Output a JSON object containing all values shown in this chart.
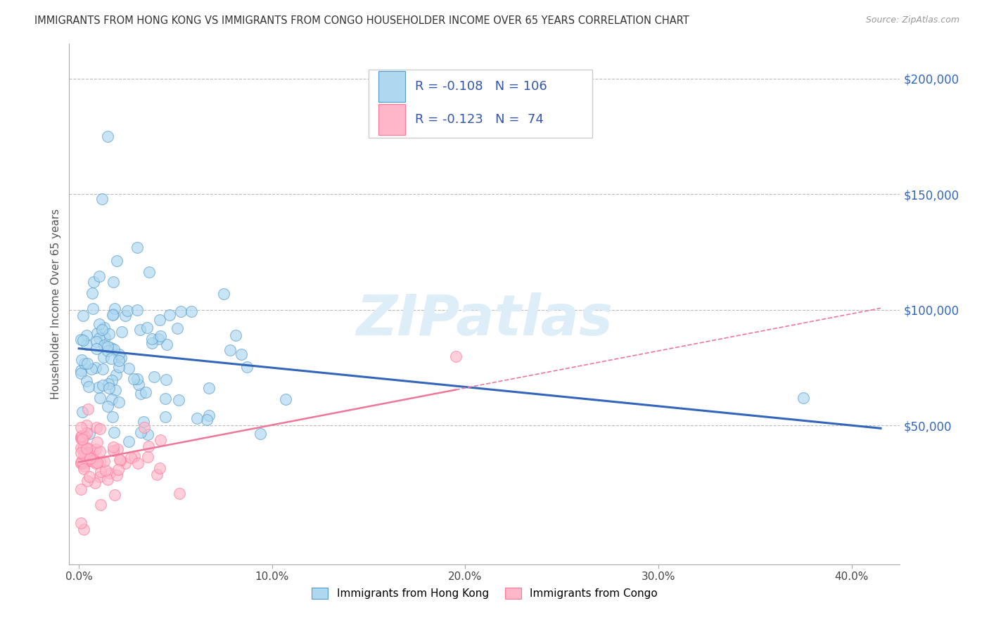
{
  "title": "IMMIGRANTS FROM HONG KONG VS IMMIGRANTS FROM CONGO HOUSEHOLDER INCOME OVER 65 YEARS CORRELATION CHART",
  "source": "Source: ZipAtlas.com",
  "ylabel": "Householder Income Over 65 years",
  "xlabel_ticks": [
    "0.0%",
    "10.0%",
    "20.0%",
    "30.0%",
    "40.0%"
  ],
  "xlabel_vals": [
    0.0,
    0.1,
    0.2,
    0.3,
    0.4
  ],
  "ylabel_ticks": [
    "$50,000",
    "$100,000",
    "$150,000",
    "$200,000"
  ],
  "ylabel_vals": [
    50000,
    100000,
    150000,
    200000
  ],
  "xlim": [
    -0.005,
    0.425
  ],
  "ylim": [
    -10000,
    215000
  ],
  "hk_R": -0.108,
  "hk_N": 106,
  "congo_R": -0.123,
  "congo_N": 74,
  "hk_color": "#ADD8F0",
  "hk_edge_color": "#5599CC",
  "congo_color": "#FFB6C8",
  "congo_edge_color": "#FF7799",
  "hk_line_color": "#3366BB",
  "congo_line_color": "#EE7799",
  "watermark": "ZIPatlas",
  "legend_label_hk": "Immigrants from Hong Kong",
  "legend_label_congo": "Immigrants from Congo",
  "background_color": "#ffffff",
  "grid_color": "#bbbbbb",
  "stat_text_color": "#3355AA",
  "right_label_color": "#3366BB"
}
